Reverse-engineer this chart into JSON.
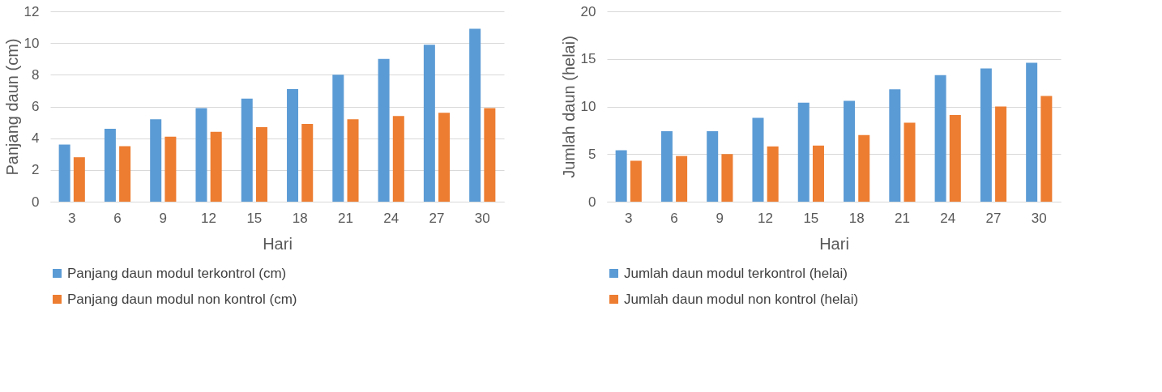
{
  "chart_data": [
    {
      "type": "bar",
      "xlabel": "Hari",
      "ylabel": "Panjang daun (cm)",
      "categories": [
        "3",
        "6",
        "9",
        "12",
        "15",
        "18",
        "21",
        "24",
        "27",
        "30"
      ],
      "ylim": [
        0,
        12
      ],
      "yticks": [
        0,
        2,
        4,
        6,
        8,
        10,
        12
      ],
      "grid": "y",
      "legend": "bottom",
      "series": [
        {
          "name": "Panjang daun modul terkontrol (cm)",
          "color": "#5b9bd5",
          "values": [
            3.6,
            4.6,
            5.2,
            5.9,
            6.5,
            7.1,
            8.0,
            9.0,
            9.9,
            10.9
          ]
        },
        {
          "name": "Panjang daun modul non kontrol (cm)",
          "color": "#ed7d31",
          "values": [
            2.8,
            3.5,
            4.1,
            4.4,
            4.7,
            4.9,
            5.2,
            5.4,
            5.6,
            5.9
          ]
        }
      ]
    },
    {
      "type": "bar",
      "xlabel": "Hari",
      "ylabel": "Jumlah daun (helai)",
      "categories": [
        "3",
        "6",
        "9",
        "12",
        "15",
        "18",
        "21",
        "24",
        "27",
        "30"
      ],
      "ylim": [
        0,
        20
      ],
      "yticks": [
        0,
        5,
        10,
        15,
        20
      ],
      "grid": "y",
      "legend": "bottom",
      "series": [
        {
          "name": "Jumlah daun modul terkontrol (helai)",
          "color": "#5b9bd5",
          "values": [
            5.4,
            7.4,
            7.4,
            8.8,
            10.4,
            10.6,
            11.8,
            13.3,
            14.0,
            14.6
          ]
        },
        {
          "name": "Jumlah daun modul non kontrol (helai)",
          "color": "#ed7d31",
          "values": [
            4.3,
            4.8,
            5.0,
            5.8,
            5.9,
            7.0,
            8.3,
            9.1,
            10.0,
            11.1
          ]
        }
      ]
    }
  ]
}
